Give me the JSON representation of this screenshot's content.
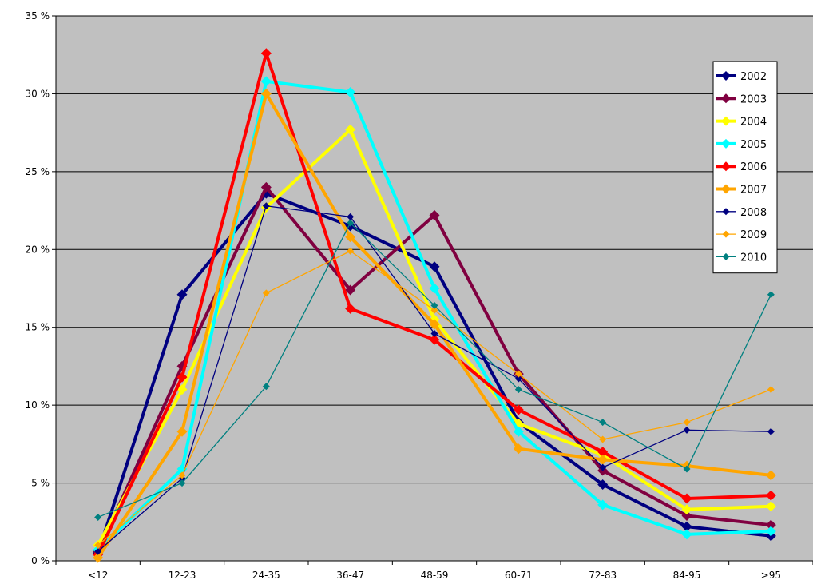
{
  "chart_data": {
    "type": "line",
    "title": "",
    "xlabel": "",
    "ylabel": "",
    "categories": [
      "<12",
      "12-23",
      "24-35",
      "36-47",
      "48-59",
      "60-71",
      "72-83",
      "84-95",
      ">95"
    ],
    "y_ticks": [
      "0 %",
      "5 %",
      "10 %",
      "15 %",
      "20 %",
      "25 %",
      "30 %",
      "35 %"
    ],
    "ylim": [
      0,
      35
    ],
    "grid": true,
    "legend_position": "top-right",
    "plot_background": "#c0c0c0",
    "series": [
      {
        "name": "2002",
        "color": "#000080",
        "style": "thick",
        "values": [
          0.5,
          17.1,
          23.6,
          21.5,
          18.9,
          8.9,
          4.9,
          2.2,
          1.6
        ]
      },
      {
        "name": "2003",
        "color": "#800040",
        "style": "thick",
        "values": [
          0.6,
          12.5,
          24.0,
          17.4,
          22.2,
          12.0,
          5.8,
          2.9,
          2.3
        ]
      },
      {
        "name": "2004",
        "color": "#ffff00",
        "style": "thick",
        "values": [
          1.0,
          11.0,
          22.7,
          27.7,
          15.5,
          8.8,
          6.8,
          3.3,
          3.5
        ]
      },
      {
        "name": "2005",
        "color": "#00ffff",
        "style": "thick",
        "values": [
          0.7,
          5.9,
          30.8,
          30.1,
          17.5,
          8.3,
          3.6,
          1.7,
          1.9
        ]
      },
      {
        "name": "2006",
        "color": "#ff0000",
        "style": "thick",
        "values": [
          0.4,
          11.8,
          32.6,
          16.2,
          14.2,
          9.7,
          7.0,
          4.0,
          4.2
        ]
      },
      {
        "name": "2007",
        "color": "#ffa500",
        "style": "thick",
        "values": [
          0.2,
          8.3,
          30.0,
          20.8,
          15.2,
          7.2,
          6.5,
          6.1,
          5.5
        ]
      },
      {
        "name": "2008",
        "color": "#000080",
        "style": "thin",
        "values": [
          0.6,
          5.3,
          22.8,
          22.1,
          14.6,
          11.7,
          6.0,
          8.4,
          8.3
        ]
      },
      {
        "name": "2009",
        "color": "#ffa500",
        "style": "thin",
        "values": [
          1.0,
          5.5,
          17.2,
          19.9,
          16.1,
          12.0,
          7.8,
          8.9,
          11.0
        ]
      },
      {
        "name": "2010",
        "color": "#008080",
        "style": "thin",
        "values": [
          2.8,
          5.0,
          11.2,
          21.7,
          16.4,
          11.0,
          8.9,
          5.9,
          17.1
        ]
      }
    ]
  }
}
